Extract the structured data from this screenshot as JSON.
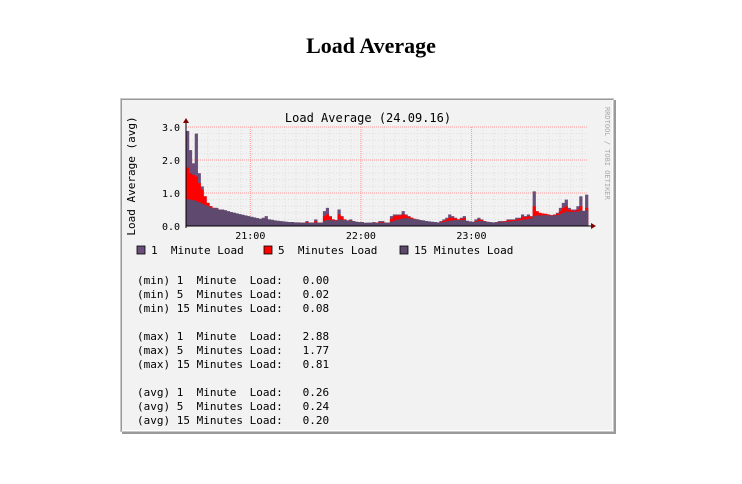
{
  "page_title": "Load Average",
  "watermark": "RRDTOOL / TOBI OETIKER",
  "colors": {
    "one_min": "#6b4f7a",
    "five_min": "#ff0000",
    "fifteen_min": "#5e4a6e",
    "grid": "#ff9a9a",
    "axis": "#000000",
    "arrow": "#800000"
  },
  "chart_data": {
    "type": "area",
    "title": "Load Average (24.09.16)",
    "ylabel": "Load Average (avg)",
    "xlabel": "",
    "ylim": [
      0,
      3
    ],
    "y_ticks": [
      "0.0",
      "1.0",
      "2.0",
      "3.0"
    ],
    "x_ticks": [
      {
        "label": "21:00",
        "pos": 0.16
      },
      {
        "label": "22:00",
        "pos": 0.435
      },
      {
        "label": "23:00",
        "pos": 0.71
      }
    ],
    "grid": true,
    "legend": [
      {
        "name": "1  Minute Load",
        "color": "#6b4f7a"
      },
      {
        "name": "5  Minutes Load",
        "color": "#ff0000"
      },
      {
        "name": "15 Minutes Load",
        "color": "#5e4a6e"
      }
    ],
    "series": [
      {
        "name": "1  Minute Load",
        "values": [
          2.88,
          2.3,
          1.9,
          2.8,
          1.6,
          1.2,
          0.9,
          0.7,
          0.6,
          0.55,
          0.55,
          0.5,
          0.5,
          0.48,
          0.45,
          0.42,
          0.4,
          0.38,
          0.35,
          0.3,
          0.28,
          0.25,
          0.22,
          0.2,
          0.2,
          0.18,
          0.25,
          0.3,
          0.2,
          0.18,
          0.15,
          0.12,
          0.12,
          0.1,
          0.1,
          0.1,
          0.12,
          0.1,
          0.1,
          0.1,
          0.1,
          0.15,
          0.1,
          0.1,
          0.2,
          0.1,
          0.1,
          0.45,
          0.55,
          0.3,
          0.2,
          0.15,
          0.5,
          0.3,
          0.2,
          0.15,
          0.2,
          0.15,
          0.1,
          0.1,
          0.12,
          0.08,
          0.1,
          0.1,
          0.12,
          0.1,
          0.15,
          0.15,
          0.1,
          0.1,
          0.3,
          0.35,
          0.35,
          0.35,
          0.45,
          0.35,
          0.3,
          0.25,
          0.2,
          0.2,
          0.15,
          0.15,
          0.12,
          0.1,
          0.1,
          0.12,
          0.1,
          0.15,
          0.2,
          0.25,
          0.35,
          0.3,
          0.25,
          0.2,
          0.25,
          0.3,
          0.1,
          0.1,
          0.1,
          0.2,
          0.25,
          0.2,
          0.15,
          0.12,
          0.1,
          0.1,
          0.12,
          0.15,
          0.15,
          0.15,
          0.2,
          0.2,
          0.2,
          0.25,
          0.25,
          0.35,
          0.3,
          0.35,
          0.3,
          1.05,
          0.4,
          0.3,
          0.35,
          0.35,
          0.3,
          0.3,
          0.35,
          0.4,
          0.55,
          0.7,
          0.8,
          0.55,
          0.5,
          0.5,
          0.6,
          0.9,
          0.45,
          0.95
        ]
      },
      {
        "name": "5  Minutes Load",
        "values": [
          1.77,
          1.6,
          1.55,
          1.5,
          1.3,
          1.1,
          0.9,
          0.7,
          0.6,
          0.55,
          0.52,
          0.5,
          0.48,
          0.45,
          0.43,
          0.4,
          0.38,
          0.36,
          0.33,
          0.3,
          0.27,
          0.25,
          0.22,
          0.2,
          0.19,
          0.18,
          0.2,
          0.22,
          0.19,
          0.17,
          0.15,
          0.13,
          0.12,
          0.11,
          0.1,
          0.1,
          0.1,
          0.1,
          0.1,
          0.1,
          0.1,
          0.12,
          0.1,
          0.1,
          0.15,
          0.1,
          0.1,
          0.3,
          0.35,
          0.28,
          0.2,
          0.18,
          0.35,
          0.28,
          0.2,
          0.17,
          0.17,
          0.14,
          0.11,
          0.1,
          0.1,
          0.09,
          0.09,
          0.1,
          0.1,
          0.1,
          0.12,
          0.12,
          0.1,
          0.1,
          0.22,
          0.3,
          0.32,
          0.32,
          0.35,
          0.32,
          0.28,
          0.25,
          0.22,
          0.2,
          0.17,
          0.15,
          0.13,
          0.11,
          0.1,
          0.1,
          0.1,
          0.12,
          0.16,
          0.2,
          0.25,
          0.25,
          0.23,
          0.2,
          0.22,
          0.24,
          0.14,
          0.11,
          0.1,
          0.15,
          0.2,
          0.18,
          0.15,
          0.12,
          0.1,
          0.1,
          0.11,
          0.12,
          0.13,
          0.14,
          0.17,
          0.18,
          0.18,
          0.2,
          0.22,
          0.28,
          0.27,
          0.3,
          0.28,
          0.6,
          0.45,
          0.4,
          0.38,
          0.37,
          0.35,
          0.33,
          0.34,
          0.37,
          0.45,
          0.55,
          0.6,
          0.5,
          0.47,
          0.46,
          0.5,
          0.6,
          0.45,
          0.55
        ]
      },
      {
        "name": "15 Minutes Load",
        "values": [
          0.81,
          0.8,
          0.78,
          0.76,
          0.72,
          0.68,
          0.64,
          0.6,
          0.56,
          0.54,
          0.52,
          0.5,
          0.48,
          0.46,
          0.44,
          0.42,
          0.4,
          0.38,
          0.36,
          0.34,
          0.32,
          0.3,
          0.28,
          0.26,
          0.24,
          0.22,
          0.22,
          0.22,
          0.2,
          0.19,
          0.17,
          0.16,
          0.15,
          0.14,
          0.13,
          0.12,
          0.12,
          0.11,
          0.11,
          0.1,
          0.1,
          0.1,
          0.1,
          0.1,
          0.11,
          0.1,
          0.1,
          0.15,
          0.18,
          0.18,
          0.17,
          0.16,
          0.2,
          0.19,
          0.18,
          0.17,
          0.16,
          0.15,
          0.13,
          0.12,
          0.11,
          0.1,
          0.1,
          0.1,
          0.1,
          0.1,
          0.1,
          0.1,
          0.1,
          0.1,
          0.13,
          0.16,
          0.19,
          0.21,
          0.23,
          0.24,
          0.23,
          0.22,
          0.21,
          0.2,
          0.18,
          0.17,
          0.15,
          0.14,
          0.13,
          0.12,
          0.11,
          0.11,
          0.12,
          0.14,
          0.16,
          0.17,
          0.18,
          0.18,
          0.18,
          0.19,
          0.16,
          0.14,
          0.13,
          0.13,
          0.15,
          0.15,
          0.14,
          0.13,
          0.12,
          0.11,
          0.11,
          0.11,
          0.12,
          0.12,
          0.13,
          0.14,
          0.15,
          0.16,
          0.17,
          0.19,
          0.2,
          0.22,
          0.23,
          0.3,
          0.32,
          0.32,
          0.32,
          0.33,
          0.32,
          0.32,
          0.32,
          0.33,
          0.36,
          0.4,
          0.44,
          0.43,
          0.43,
          0.43,
          0.44,
          0.47,
          0.46,
          0.48
        ]
      }
    ]
  },
  "stats": {
    "min": [
      {
        "label": "(min) 1  Minute  Load:",
        "value": "0.00"
      },
      {
        "label": "(min) 5  Minutes Load:",
        "value": "0.02"
      },
      {
        "label": "(min) 15 Minutes Load:",
        "value": "0.08"
      }
    ],
    "max": [
      {
        "label": "(max) 1  Minute  Load:",
        "value": "2.88"
      },
      {
        "label": "(max) 5  Minutes Load:",
        "value": "1.77"
      },
      {
        "label": "(max) 15 Minutes Load:",
        "value": "0.81"
      }
    ],
    "avg": [
      {
        "label": "(avg) 1  Minute  Load:",
        "value": "0.26"
      },
      {
        "label": "(avg) 5  Minutes Load:",
        "value": "0.24"
      },
      {
        "label": "(avg) 15 Minutes Load:",
        "value": "0.20"
      }
    ]
  }
}
